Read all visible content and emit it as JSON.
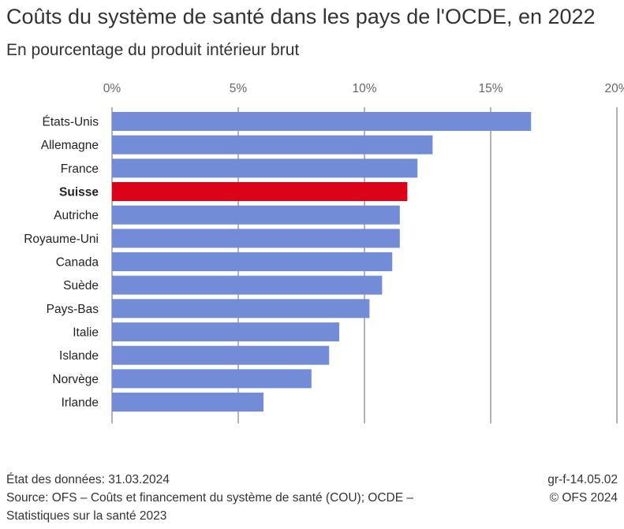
{
  "chart_data": {
    "type": "bar",
    "orientation": "horizontal",
    "title": "Coûts du système de santé dans les pays de l'OCDE, en 2022",
    "subtitle": "En pourcentage du produit intérieur brut",
    "categories": [
      "États-Unis",
      "Allemagne",
      "France",
      "Suisse",
      "Autriche",
      "Royaume-Uni",
      "Canada",
      "Suède",
      "Pays-Bas",
      "Italie",
      "Islande",
      "Norvège",
      "Irlande"
    ],
    "values": [
      16.6,
      12.7,
      12.1,
      11.7,
      11.4,
      11.4,
      11.1,
      10.7,
      10.2,
      9.0,
      8.6,
      7.9,
      6.0
    ],
    "highlight": "Suisse",
    "xlim": [
      0,
      20
    ],
    "xticks": [
      0,
      5,
      10,
      15,
      20
    ],
    "xtick_labels": [
      "0%",
      "5%",
      "10%",
      "15%",
      "20%"
    ],
    "axis_position": "top",
    "grid": true,
    "colors": {
      "bar": "#728cd8",
      "highlight": "#dc0018",
      "grid": "#8a8a8a"
    }
  },
  "footer": {
    "data_state": "État des données: 31.03.2024",
    "source_line1": "Source: OFS – Coûts et financement du système de santé (COU); OCDE –",
    "source_line2": "Statistiques sur la santé 2023",
    "code": "gr-f-14.05.02",
    "copyright": "© OFS 2024"
  }
}
